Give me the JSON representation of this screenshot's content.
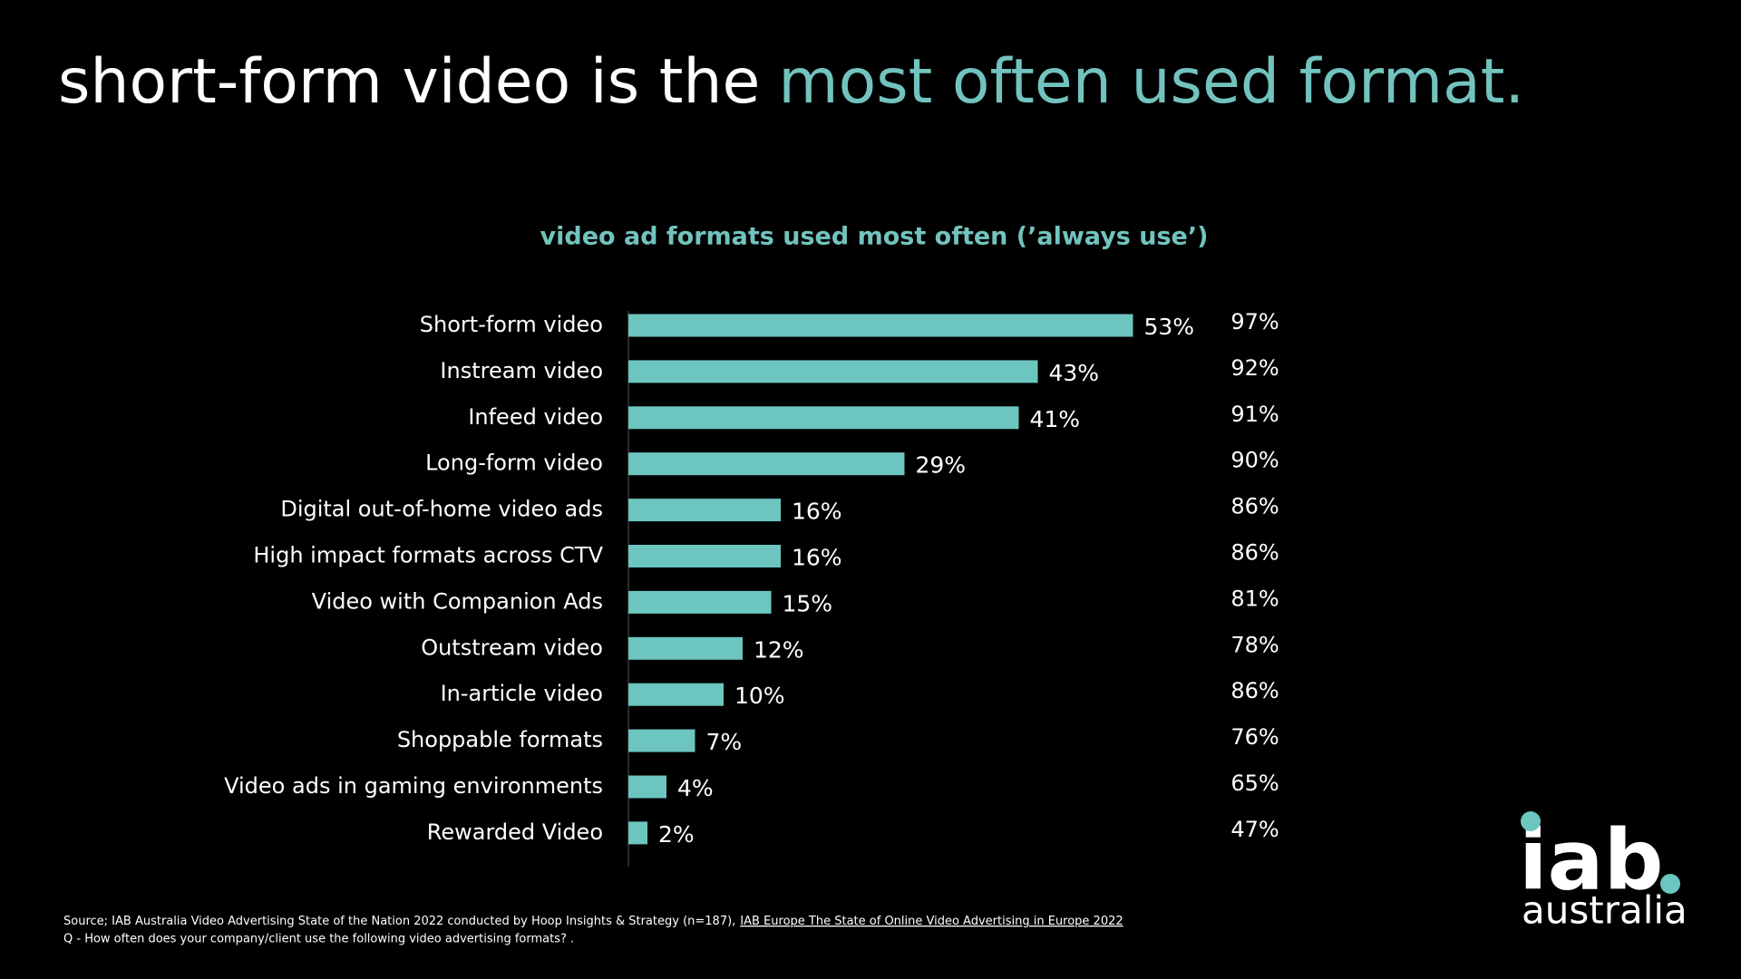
{
  "slide": {
    "title": "short-form video is the",
    "title_highlight": "most often used format."
  },
  "chart_data": {
    "type": "hbar",
    "title": "video ad formats used most often (’always use’)",
    "categories": [
      "Short-form video",
      "Instream video",
      "Infeed video",
      "Long-form video",
      "Digital out-of-home video ads",
      "High impact formats across CTV",
      "Video with Companion Ads",
      "Outstream video",
      "In-article video",
      "Shoppable formats",
      "Video ads in gaming environments",
      "Rewarded Video"
    ],
    "values": [
      53,
      43,
      41,
      29,
      16,
      16,
      15,
      12,
      10,
      7,
      4,
      2
    ],
    "value_labels": [
      "53%",
      "43%",
      "41%",
      "29%",
      "16%",
      "16%",
      "15%",
      "12%",
      "10%",
      "7%",
      "4%",
      "2%"
    ],
    "color": "#6cc5bf",
    "secondary_values": [
      97,
      92,
      91,
      90,
      86,
      86,
      81,
      78,
      86,
      76,
      65,
      47
    ],
    "secondary_value_labels": [
      "97%",
      "92%",
      "91%",
      "90%",
      "86%",
      "86%",
      "81%",
      "78%",
      "86%",
      "76%",
      "65%",
      "47%"
    ]
  },
  "footer": {
    "source": "Source; IAB Australia Video Advertising State of the Nation 2022 conducted by Hoop Insights & Strategy (n=187),",
    "source_link": "IAB Europe The State of Online Video Advertising in Europe 2022",
    "question": "Q - How often does your company/client use the following video advertising formats? ."
  },
  "logo": {
    "top": "iab",
    "bottom": "australia"
  }
}
